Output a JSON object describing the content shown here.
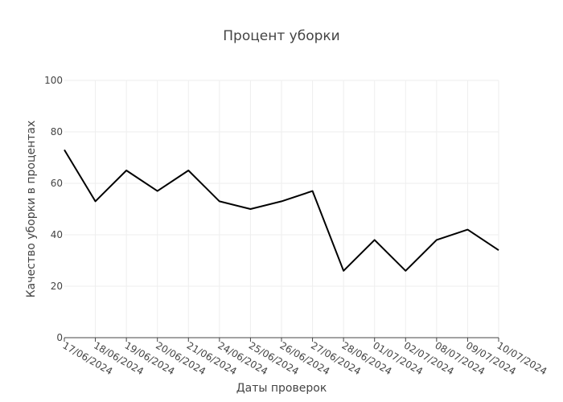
{
  "chart_data": {
    "type": "line",
    "title": "Процент уборки",
    "xlabel": "Даты проверок",
    "ylabel": "Качество уборки в процентах",
    "ylim": [
      0,
      100
    ],
    "yticks": [
      0,
      20,
      40,
      60,
      80,
      100
    ],
    "grid": true,
    "legend": "none",
    "categories": [
      "17/06/2024",
      "18/06/2024",
      "19/06/2024",
      "20/06/2024",
      "21/06/2024",
      "24/06/2024",
      "25/06/2024",
      "26/06/2024",
      "27/06/2024",
      "28/06/2024",
      "01/07/2024",
      "02/07/2024",
      "08/07/2024",
      "09/07/2024",
      "10/07/2024"
    ],
    "series": [
      {
        "values": [
          73,
          53,
          65,
          57,
          65,
          53,
          50,
          53,
          57,
          26,
          38,
          26,
          38,
          42,
          34
        ],
        "color": "#000000"
      }
    ]
  }
}
